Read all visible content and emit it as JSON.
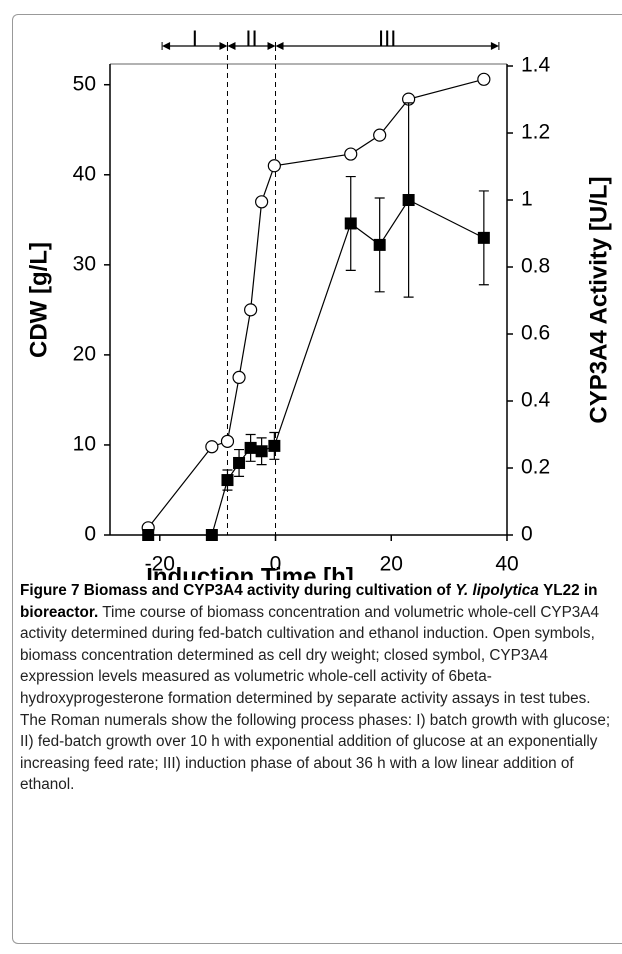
{
  "chart_data": {
    "type": "line",
    "x": [
      -22,
      -11,
      -8.3,
      -6.3,
      -4.3,
      -2.4,
      -0.2,
      13,
      18,
      23,
      36
    ],
    "series": [
      {
        "name": "CDW",
        "color": "#000000",
        "marker": "circle-open",
        "axis": "y",
        "values": [
          0.8,
          9.8,
          10.4,
          17.5,
          25,
          37,
          41,
          42.3,
          44.4,
          48.4,
          50.6
        ]
      },
      {
        "name": "CYP3A4 Activity",
        "color": "#000000",
        "marker": "square",
        "axis": "y2",
        "values": [
          0,
          0,
          0.164,
          0.215,
          0.26,
          0.25,
          0.266,
          0.93,
          0.866,
          1.0,
          0.887
        ],
        "errors": [
          0,
          0,
          0.03,
          0.04,
          0.04,
          0.04,
          0.04,
          0.14,
          0.14,
          0.29,
          0.14
        ]
      }
    ],
    "xlim": [
      -28.6,
      40
    ],
    "xticks": [
      -20,
      0,
      20,
      40
    ],
    "ylim": [
      0,
      52.3
    ],
    "yticks": [
      0,
      10,
      20,
      30,
      40,
      50
    ],
    "y2lim": [
      0,
      1.406
    ],
    "y2ticks": [
      0,
      0.2,
      0.4,
      0.6,
      0.8,
      1,
      1.2,
      1.4
    ],
    "x_label": "Induction Time [h]",
    "y_label": "CDW [g/L]",
    "y2_label": "CYP3A4 Activity [U/L]",
    "phases": [
      {
        "label": "I",
        "start": -19.6,
        "end": -8.3
      },
      {
        "label": "II",
        "start": -8.3,
        "end": 0
      },
      {
        "label": "III",
        "start": 0,
        "end": 38.6
      }
    ]
  },
  "caption": {
    "label": "Figure 7",
    "title_before": "Biomass and CYP3A4 activity during cultivation of",
    "title_italic": "Y. lipolytica",
    "title_after": "YL22 in bioreactor.",
    "text": "Time course of biomass concentration and volumetric whole-cell CYP3A4 activity determined during fed-batch cultivation and ethanol induction. Open symbols, biomass concentration determined as cell dry weight; closed symbol, CYP3A4 expression levels measured as volumetric whole-cell activity of 6beta-hydroxyprogesterone formation determined by separate activity assays in test tubes. The Roman numerals show the following process phases: I) batch growth with glucose; II) fed-batch growth over 10 h with exponential addition of glucose at an exponentially increasing feed rate; III) induction phase of about 36 h with a low linear addition of ethanol."
  }
}
